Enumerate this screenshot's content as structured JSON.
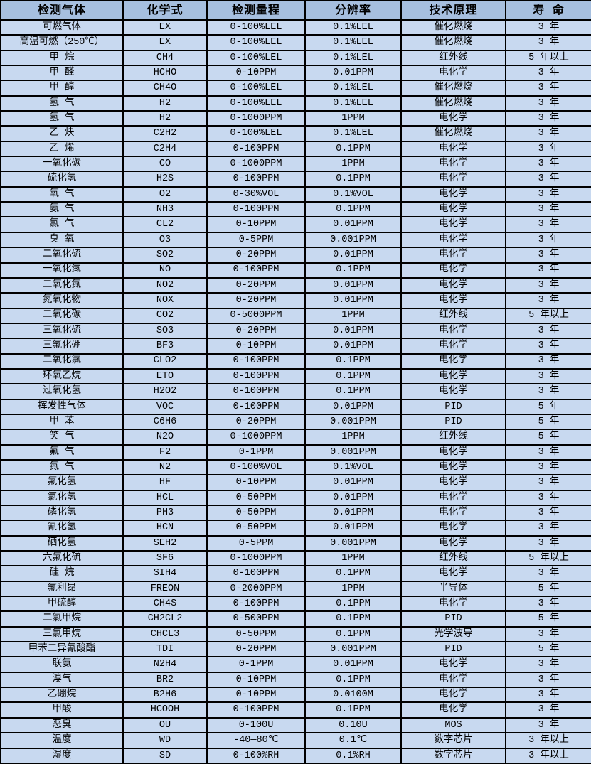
{
  "colors": {
    "header_bg": "#a6bfdf",
    "cell_bg": "#c8d9f0",
    "border": "#000000",
    "text": "#000000"
  },
  "table": {
    "columns": [
      {
        "key": "gas",
        "label": "检测气体"
      },
      {
        "key": "formula",
        "label": "化学式"
      },
      {
        "key": "range",
        "label": "检测量程"
      },
      {
        "key": "resolution",
        "label": "分辨率"
      },
      {
        "key": "principle",
        "label": "技术原理"
      },
      {
        "key": "lifespan",
        "label": "寿 命"
      }
    ],
    "rows": [
      [
        "可燃气体",
        "EX",
        "0-100%LEL",
        "0.1%LEL",
        "催化燃烧",
        "3 年"
      ],
      [
        "高温可燃（250℃）",
        "EX",
        "0-100%LEL",
        "0.1%LEL",
        "催化燃烧",
        "3 年"
      ],
      [
        "甲 烷",
        "CH4",
        "0-100%LEL",
        "0.1%LEL",
        "红外线",
        "5 年以上"
      ],
      [
        "甲 醛",
        "HCHO",
        "0-10PPM",
        "0.01PPM",
        "电化学",
        "3 年"
      ],
      [
        "甲 醇",
        "CH4O",
        "0-100%LEL",
        "0.1%LEL",
        "催化燃烧",
        "3 年"
      ],
      [
        "氢 气",
        "H2",
        "0-100%LEL",
        "0.1%LEL",
        "催化燃烧",
        "3 年"
      ],
      [
        "氢 气",
        "H2",
        "0-1000PPM",
        "1PPM",
        "电化学",
        "3 年"
      ],
      [
        "乙 炔",
        "C2H2",
        "0-100%LEL",
        "0.1%LEL",
        "催化燃烧",
        "3 年"
      ],
      [
        "乙 烯",
        "C2H4",
        "0-100PPM",
        "0.1PPM",
        "电化学",
        "3 年"
      ],
      [
        "一氧化碳",
        "CO",
        "0-1000PPM",
        "1PPM",
        "电化学",
        "3 年"
      ],
      [
        "硫化氢",
        "H2S",
        "0-100PPM",
        "0.1PPM",
        "电化学",
        "3 年"
      ],
      [
        "氧 气",
        "O2",
        "0-30%VOL",
        "0.1%VOL",
        "电化学",
        "3 年"
      ],
      [
        "氨 气",
        "NH3",
        "0-100PPM",
        "0.1PPM",
        "电化学",
        "3 年"
      ],
      [
        "氯 气",
        "CL2",
        "0-10PPM",
        "0.01PPM",
        "电化学",
        "3 年"
      ],
      [
        "臭 氧",
        "O3",
        "0-5PPM",
        "0.001PPM",
        "电化学",
        "3 年"
      ],
      [
        "二氧化硫",
        "SO2",
        "0-20PPM",
        "0.01PPM",
        "电化学",
        "3 年"
      ],
      [
        "一氧化氮",
        "NO",
        "0-100PPM",
        "0.1PPM",
        "电化学",
        "3 年"
      ],
      [
        "二氧化氮",
        "NO2",
        "0-20PPM",
        "0.01PPM",
        "电化学",
        "3 年"
      ],
      [
        "氮氧化物",
        "NOX",
        "0-20PPM",
        "0.01PPM",
        "电化学",
        "3 年"
      ],
      [
        "二氧化碳",
        "CO2",
        "0-5000PPM",
        "1PPM",
        "红外线",
        "5 年以上"
      ],
      [
        "三氧化硫",
        "SO3",
        "0-20PPM",
        "0.01PPM",
        "电化学",
        "3 年"
      ],
      [
        "三氟化硼",
        "BF3",
        "0-10PPM",
        "0.01PPM",
        "电化学",
        "3 年"
      ],
      [
        "二氧化氯",
        "CLO2",
        "0-100PPM",
        "0.1PPM",
        "电化学",
        "3 年"
      ],
      [
        "环氧乙烷",
        "ETO",
        "0-100PPM",
        "0.1PPM",
        "电化学",
        "3 年"
      ],
      [
        "过氧化氢",
        "H2O2",
        "0-100PPM",
        "0.1PPM",
        "电化学",
        "3 年"
      ],
      [
        "挥发性气体",
        "VOC",
        "0-100PPM",
        "0.01PPM",
        "PID",
        "5 年"
      ],
      [
        "甲 苯",
        "C6H6",
        "0-20PPM",
        "0.001PPM",
        "PID",
        "5 年"
      ],
      [
        "笑 气",
        "N2O",
        "0-1000PPM",
        "1PPM",
        "红外线",
        "5 年"
      ],
      [
        "氟 气",
        "F2",
        "0-1PPM",
        "0.001PPM",
        "电化学",
        "3 年"
      ],
      [
        "氮 气",
        "N2",
        "0-100%VOL",
        "0.1%VOL",
        "电化学",
        "3 年"
      ],
      [
        "氟化氢",
        "HF",
        "0-10PPM",
        "0.01PPM",
        "电化学",
        "3 年"
      ],
      [
        "氯化氢",
        "HCL",
        "0-50PPM",
        "0.01PPM",
        "电化学",
        "3 年"
      ],
      [
        "磷化氢",
        "PH3",
        "0-50PPM",
        "0.01PPM",
        "电化学",
        "3 年"
      ],
      [
        "氰化氢",
        "HCN",
        "0-50PPM",
        "0.01PPM",
        "电化学",
        "3 年"
      ],
      [
        "硒化氢",
        "SEH2",
        "0-5PPM",
        "0.001PPM",
        "电化学",
        "3 年"
      ],
      [
        "六氟化硫",
        "SF6",
        "0-1000PPM",
        "1PPM",
        "红外线",
        "5 年以上"
      ],
      [
        "硅 烷",
        "SIH4",
        "0-100PPM",
        "0.1PPM",
        "电化学",
        "3 年"
      ],
      [
        "氟利昂",
        "FREON",
        "0-2000PPM",
        "1PPM",
        "半导体",
        "5 年"
      ],
      [
        "甲硫醇",
        "CH4S",
        "0-100PPM",
        "0.1PPM",
        "电化学",
        "3 年"
      ],
      [
        "二氯甲烷",
        "CH2CL2",
        "0-500PPM",
        "0.1PPM",
        "PID",
        "5 年"
      ],
      [
        "三氯甲烷",
        "CHCL3",
        "0-50PPM",
        "0.1PPM",
        "光学波导",
        "3 年"
      ],
      [
        "甲苯二异氰酸酯",
        "TDI",
        "0-20PPM",
        "0.001PPM",
        "PID",
        "5 年"
      ],
      [
        "联氨",
        "N2H4",
        "0-1PPM",
        "0.01PPM",
        "电化学",
        "3 年"
      ],
      [
        "溴气",
        "BR2",
        "0-10PPM",
        "0.1PPM",
        "电化学",
        "3 年"
      ],
      [
        "乙硼烷",
        "B2H6",
        "0-10PPM",
        "0.0100M",
        "电化学",
        "3 年"
      ],
      [
        "甲酸",
        "HCOOH",
        "0-100PPM",
        "0.1PPM",
        "电化学",
        "3 年"
      ],
      [
        "恶臭",
        "OU",
        "0-100U",
        "0.10U",
        "MOS",
        "3 年"
      ],
      [
        "温度",
        "WD",
        "-40—80℃",
        "0.1℃",
        "数字芯片",
        "3 年以上"
      ],
      [
        "湿度",
        "SD",
        "0-100%RH",
        "0.1%RH",
        "数字芯片",
        "3 年以上"
      ]
    ]
  }
}
